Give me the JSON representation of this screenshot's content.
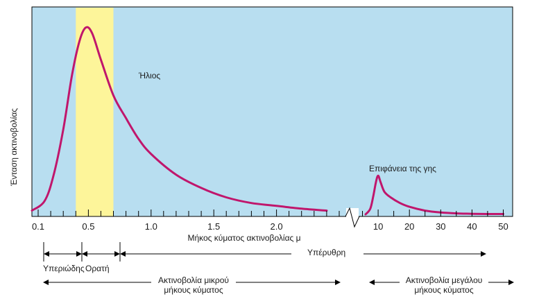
{
  "colors": {
    "plot_background": "#b8def0",
    "visible_band": "#fdf59a",
    "curve": "#c0166c",
    "axis": "#000000"
  },
  "labels": {
    "ylabel": "Ένταση ακτινοβολίας",
    "xlabel": "Μήκος κύματος ακτινοβολίας μ",
    "sun": "Ήλιος",
    "earth": "Επιφάνεια της γης",
    "uv": "Υπεριώδης",
    "visible": "Ορατή",
    "ir": "Υπέρυθρη",
    "shortwave_line1": "Ακτινοβολία μικρού",
    "shortwave_line2": "μήκους κύματος",
    "longwave_line1": "Ακτινοβολία μεγάλου",
    "longwave_line2": "μήκους κύματος"
  },
  "chart_data": {
    "type": "line",
    "title": "",
    "xlabel": "Μήκος κύματος ακτινοβολίας μ",
    "ylabel": "Ένταση ακτινοβολίας",
    "grid": false,
    "broken_x_axis": true,
    "segments": [
      {
        "xlim": [
          0.05,
          2.55
        ],
        "ticks": [
          0.1,
          0.5,
          1.0,
          1.5,
          2.0
        ],
        "tick_labels": [
          "0.1",
          "0.5",
          "1.0",
          "1.5",
          "2.0"
        ],
        "minor_tick_step": 0.1
      },
      {
        "xlim": [
          4,
          53
        ],
        "ticks": [
          10,
          20,
          30,
          40,
          50
        ],
        "tick_labels": [
          "10",
          "20",
          "30",
          "40",
          "50"
        ],
        "minor_tick_step": 5
      }
    ],
    "series": [
      {
        "name": "Ήλιος",
        "segment": 0,
        "x": [
          0.05,
          0.15,
          0.22,
          0.3,
          0.37,
          0.43,
          0.48,
          0.53,
          0.6,
          0.7,
          0.8,
          0.9,
          1.0,
          1.2,
          1.4,
          1.6,
          1.8,
          2.0,
          2.2,
          2.4
        ],
        "y": [
          0.02,
          0.07,
          0.2,
          0.45,
          0.74,
          0.92,
          0.99,
          0.96,
          0.82,
          0.63,
          0.51,
          0.4,
          0.32,
          0.21,
          0.14,
          0.09,
          0.06,
          0.045,
          0.03,
          0.02
        ]
      },
      {
        "name": "Επιφάνεια της γης",
        "segment": 1,
        "x": [
          6,
          7.5,
          8.5,
          9.3,
          10,
          10.8,
          12,
          14,
          17,
          20,
          25,
          30,
          35,
          40,
          45,
          50
        ],
        "y": [
          0.0,
          0.03,
          0.1,
          0.17,
          0.205,
          0.17,
          0.12,
          0.09,
          0.06,
          0.04,
          0.02,
          0.01,
          0.005,
          0.003,
          0.002,
          0.002
        ]
      }
    ],
    "highlight_band": {
      "from": 0.4,
      "to": 0.7
    },
    "regions": [
      {
        "label": "Υπεριώδης",
        "from": 0.1,
        "to": 0.4
      },
      {
        "label": "Ορατή",
        "from": 0.4,
        "to": 0.7
      },
      {
        "label": "Υπέρυθρη",
        "from": 0.7,
        "to": 50
      }
    ]
  }
}
